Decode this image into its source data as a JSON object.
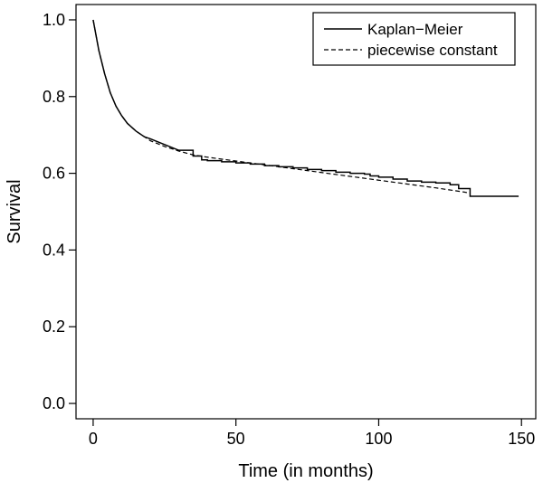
{
  "chart_data": {
    "type": "line",
    "xlabel": "Time (in months)",
    "ylabel": "Survival",
    "xlim": [
      -6,
      155
    ],
    "ylim": [
      -0.04,
      1.04
    ],
    "x_ticks": [
      0,
      50,
      100,
      150
    ],
    "y_ticks": [
      0.0,
      0.2,
      0.4,
      0.6,
      0.8,
      1.0
    ],
    "x_tick_labels": [
      "0",
      "50",
      "100",
      "150"
    ],
    "y_tick_labels": [
      "0.0",
      "0.2",
      "0.4",
      "0.6",
      "0.8",
      "1.0"
    ],
    "grid": false,
    "legend_position": "top-right",
    "series": [
      {
        "name": "Kaplan−Meier",
        "style": "solid",
        "step": true,
        "x": [
          0,
          1,
          2,
          3,
          4,
          5,
          6,
          8,
          10,
          12,
          15,
          18,
          20,
          25,
          30,
          35,
          38,
          40,
          45,
          50,
          55,
          60,
          65,
          70,
          75,
          80,
          85,
          90,
          95,
          97,
          100,
          105,
          110,
          115,
          120,
          125,
          128,
          130,
          132,
          140,
          149
        ],
        "y": [
          1.0,
          0.96,
          0.92,
          0.89,
          0.86,
          0.835,
          0.81,
          0.775,
          0.75,
          0.73,
          0.71,
          0.695,
          0.69,
          0.675,
          0.66,
          0.645,
          0.635,
          0.633,
          0.63,
          0.627,
          0.624,
          0.62,
          0.617,
          0.614,
          0.61,
          0.607,
          0.603,
          0.6,
          0.598,
          0.593,
          0.59,
          0.585,
          0.58,
          0.577,
          0.575,
          0.57,
          0.56,
          0.56,
          0.54,
          0.54,
          0.54
        ]
      },
      {
        "name": "piecewise constant",
        "style": "dashed",
        "step": false,
        "x": [
          0,
          1,
          2,
          3,
          4,
          5,
          6,
          8,
          10,
          12,
          15,
          18,
          20,
          25,
          30,
          35,
          40,
          50,
          60,
          70,
          80,
          90,
          100,
          110,
          120,
          130,
          132
        ],
        "y": [
          1.0,
          0.96,
          0.92,
          0.89,
          0.86,
          0.835,
          0.81,
          0.775,
          0.75,
          0.73,
          0.71,
          0.695,
          0.685,
          0.67,
          0.658,
          0.648,
          0.642,
          0.632,
          0.622,
          0.612,
          0.602,
          0.592,
          0.582,
          0.572,
          0.562,
          0.551,
          0.548
        ]
      }
    ]
  }
}
